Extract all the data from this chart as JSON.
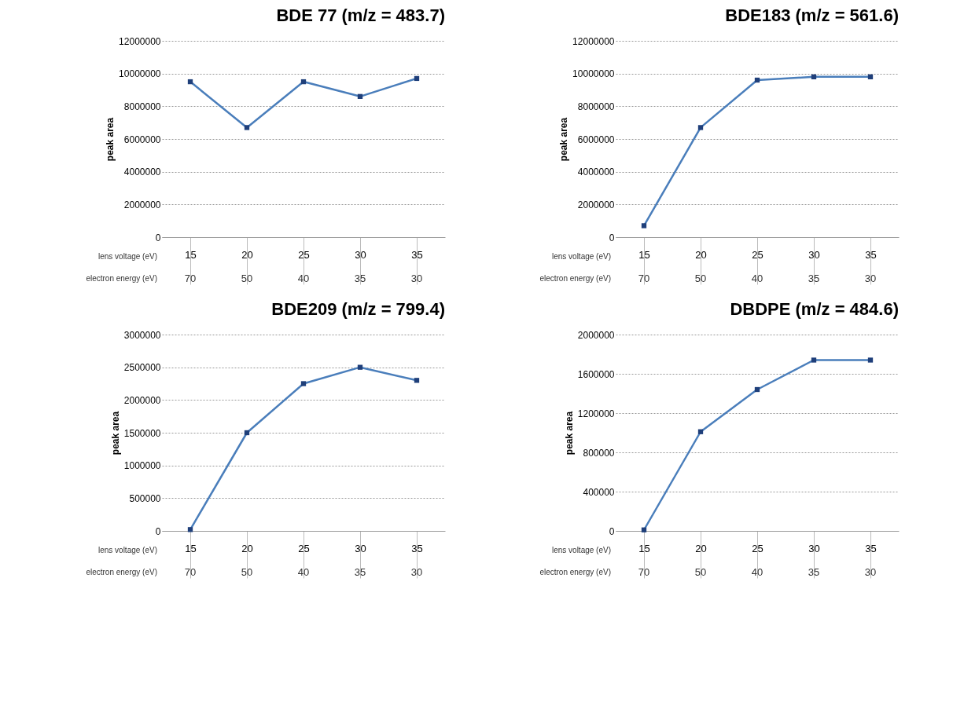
{
  "chart_data": [
    {
      "type": "line",
      "title": "BDE 77 (m/z = 483.7)",
      "ylabel": "peak area",
      "categories": [
        "15",
        "20",
        "25",
        "30",
        "35"
      ],
      "series": [
        {
          "color": "#4a7ebb",
          "values": [
            9500000,
            6700000,
            9500000,
            8600000,
            9700000
          ]
        }
      ],
      "ylim": [
        0,
        12000000
      ],
      "yticks": [
        0,
        2000000,
        4000000,
        6000000,
        8000000,
        10000000,
        12000000
      ],
      "grid": "y",
      "marker": "square",
      "annotations": [
        "lens voltage (eV)",
        "electron energy (eV)",
        {
          "text": "70",
          "x": "15"
        },
        {
          "text": "50",
          "x": "20"
        },
        {
          "text": "40",
          "x": "25"
        },
        {
          "text": "35",
          "x": "30"
        },
        {
          "text": "30",
          "x": "35"
        }
      ]
    },
    {
      "type": "line",
      "title": "BDE183 (m/z = 561.6)",
      "ylabel": "peak area",
      "categories": [
        "15",
        "20",
        "25",
        "30",
        "35"
      ],
      "series": [
        {
          "color": "#4a7ebb",
          "values": [
            700000,
            6700000,
            9600000,
            9800000,
            9800000
          ]
        }
      ],
      "ylim": [
        0,
        12000000
      ],
      "yticks": [
        0,
        2000000,
        4000000,
        6000000,
        8000000,
        10000000,
        12000000
      ],
      "grid": "y",
      "marker": "square",
      "annotations": [
        "lens voltage  (eV)",
        "electron energy (eV)",
        {
          "text": "70",
          "x": "15"
        },
        {
          "text": "50",
          "x": "20"
        },
        {
          "text": "40",
          "x": "25"
        },
        {
          "text": "35",
          "x": "30"
        },
        {
          "text": "30",
          "x": "35"
        }
      ]
    },
    {
      "type": "line",
      "title": "BDE209 (m/z = 799.4)",
      "ylabel": "peak area",
      "categories": [
        "15",
        "20",
        "25",
        "30",
        "35"
      ],
      "series": [
        {
          "color": "#4a7ebb",
          "values": [
            20000,
            1500000,
            2250000,
            2500000,
            2300000
          ]
        }
      ],
      "ylim": [
        0,
        3000000
      ],
      "yticks": [
        0,
        500000,
        1000000,
        1500000,
        2000000,
        2500000,
        3000000
      ],
      "grid": "y",
      "marker": "square",
      "annotations": [
        "lens voltage  (eV)",
        "electron energy (eV)",
        {
          "text": "70",
          "x": "15"
        },
        {
          "text": "50",
          "x": "20"
        },
        {
          "text": "40",
          "x": "25"
        },
        {
          "text": "35",
          "x": "30"
        },
        {
          "text": "30",
          "x": "35"
        }
      ]
    },
    {
      "type": "line",
      "title": "DBDPE (m/z = 484.6)",
      "ylabel": "peak area",
      "categories": [
        "15",
        "20",
        "25",
        "30",
        "35"
      ],
      "series": [
        {
          "color": "#4a7ebb",
          "values": [
            10000,
            1010000,
            1440000,
            1740000,
            1740000
          ]
        }
      ],
      "ylim": [
        0,
        2000000
      ],
      "yticks": [
        0,
        400000,
        800000,
        1200000,
        1600000,
        2000000
      ],
      "grid": "y",
      "marker": "square",
      "annotations": [
        "lens voltage  (eV)",
        "electron energy (eV)",
        {
          "text": "70",
          "x": "15"
        },
        {
          "text": "50",
          "x": "20"
        },
        {
          "text": "40",
          "x": "25"
        },
        {
          "text": "35",
          "x": "30"
        },
        {
          "text": "30",
          "x": "35"
        }
      ]
    }
  ]
}
